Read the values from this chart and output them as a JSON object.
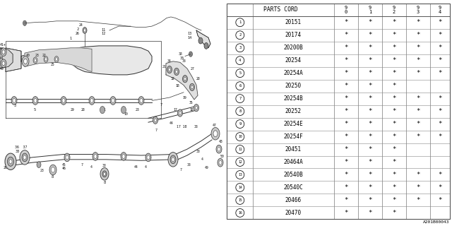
{
  "figure_code": "A201B00043",
  "bg_color": "#ffffff",
  "rows": [
    {
      "num": 1,
      "code": "20151",
      "marks": [
        1,
        1,
        1,
        1,
        1
      ]
    },
    {
      "num": 2,
      "code": "20174",
      "marks": [
        1,
        1,
        1,
        1,
        1
      ]
    },
    {
      "num": 3,
      "code": "20200B",
      "marks": [
        1,
        1,
        1,
        1,
        1
      ]
    },
    {
      "num": 4,
      "code": "20254",
      "marks": [
        1,
        1,
        1,
        1,
        1
      ]
    },
    {
      "num": 5,
      "code": "20254A",
      "marks": [
        1,
        1,
        1,
        1,
        1
      ]
    },
    {
      "num": 6,
      "code": "20250",
      "marks": [
        1,
        1,
        1,
        0,
        0
      ]
    },
    {
      "num": 7,
      "code": "20254B",
      "marks": [
        1,
        1,
        1,
        1,
        1
      ]
    },
    {
      "num": 8,
      "code": "20252",
      "marks": [
        1,
        1,
        1,
        1,
        1
      ]
    },
    {
      "num": 9,
      "code": "20254E",
      "marks": [
        1,
        1,
        1,
        1,
        1
      ]
    },
    {
      "num": 10,
      "code": "20254F",
      "marks": [
        1,
        1,
        1,
        1,
        1
      ]
    },
    {
      "num": 11,
      "code": "20451",
      "marks": [
        1,
        1,
        1,
        0,
        0
      ]
    },
    {
      "num": 12,
      "code": "20464A",
      "marks": [
        1,
        1,
        1,
        0,
        0
      ]
    },
    {
      "num": 13,
      "code": "20540B",
      "marks": [
        1,
        1,
        1,
        1,
        1
      ]
    },
    {
      "num": 14,
      "code": "20540C",
      "marks": [
        1,
        1,
        1,
        1,
        1
      ]
    },
    {
      "num": 15,
      "code": "20466",
      "marks": [
        1,
        1,
        1,
        1,
        1
      ]
    },
    {
      "num": 16,
      "code": "20470",
      "marks": [
        1,
        1,
        1,
        0,
        0
      ]
    }
  ],
  "year_labels": [
    "9\n0",
    "9\n1",
    "9\n2",
    "9\n3",
    "9\n4"
  ]
}
